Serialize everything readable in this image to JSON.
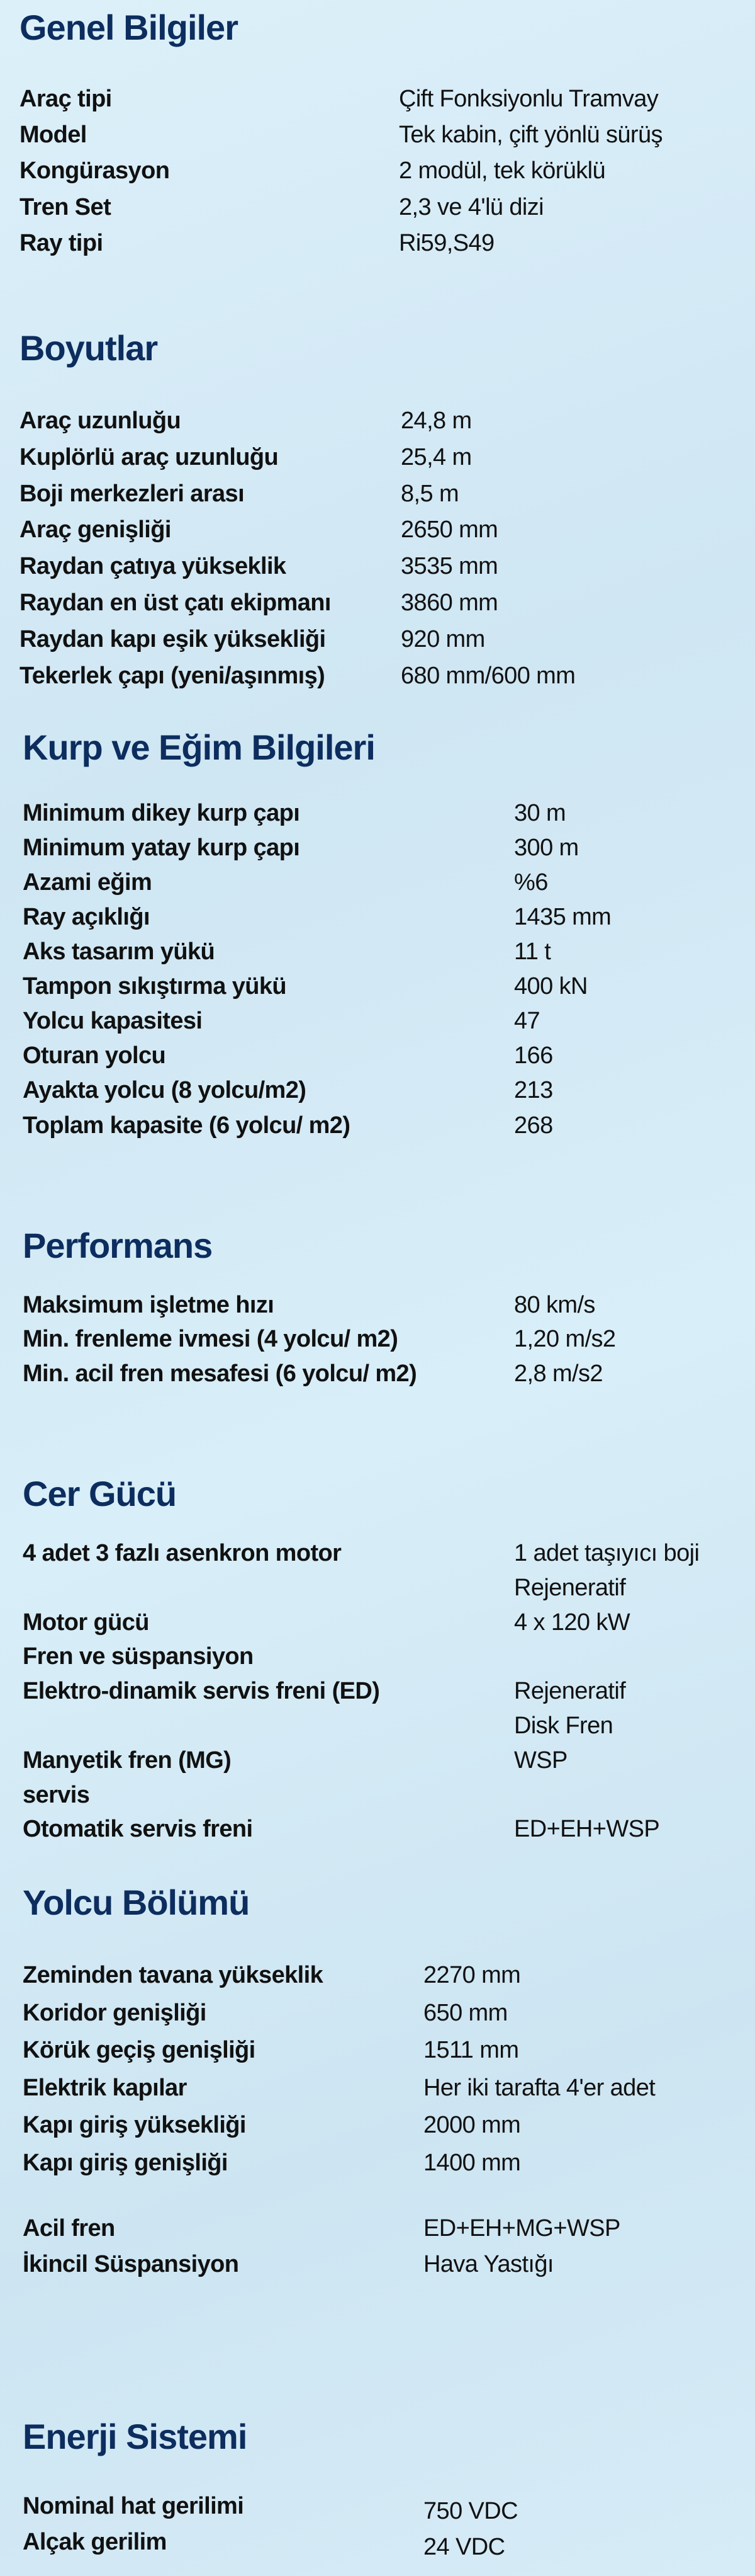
{
  "colors": {
    "heading": "#0c2d5e",
    "text": "#111111",
    "background": "#d6ecf6"
  },
  "sections": [
    {
      "title": "Genel Bilgiler",
      "rows": [
        {
          "label": "Araç tipi",
          "value": "Çift Fonksiyonlu Tramvay"
        },
        {
          "label": "Model",
          "value": "Tek kabin, çift yönlü sürüş"
        },
        {
          "label": "Kongürasyon",
          "value": "2 modül, tek körüklü"
        },
        {
          "label": "Tren Set",
          "value": "2,3 ve 4'lü dizi"
        },
        {
          "label": "Ray tipi",
          "value": "Ri59,S49"
        }
      ]
    },
    {
      "title": "Boyutlar",
      "rows": [
        {
          "label": "Araç uzunluğu",
          "value": "24,8 m"
        },
        {
          "label": "Kuplörlü araç uzunluğu",
          "value": "25,4 m"
        },
        {
          "label": "Boji merkezleri arası",
          "value": "8,5 m"
        },
        {
          "label": "Araç genişliği",
          "value": "2650 mm"
        },
        {
          "label": "Raydan çatıya yükseklik",
          "value": "3535 mm"
        },
        {
          "label": "Raydan en üst çatı ekipmanı",
          "value": "3860 mm"
        },
        {
          "label": "Raydan kapı eşik yüksekliği",
          "value": "920 mm"
        },
        {
          "label": "Tekerlek çapı (yeni/aşınmış)",
          "value": "680 mm/600 mm"
        }
      ]
    },
    {
      "title": "Kurp ve Eğim Bilgileri",
      "rows": [
        {
          "label": "Minimum dikey kurp çapı",
          "value": "30 m"
        },
        {
          "label": "Minimum yatay kurp çapı",
          "value": "300 m"
        },
        {
          "label": "Azami eğim",
          "value": "%6"
        },
        {
          "label": "Ray açıklığı",
          "value": "1435 mm"
        },
        {
          "label": "Aks tasarım yükü",
          "value": "11 t"
        },
        {
          "label": "Tampon sıkıştırma yükü",
          "value": "400 kN"
        },
        {
          "label": "Yolcu kapasitesi",
          "value": "47"
        },
        {
          "label": "Oturan yolcu",
          "value": "166"
        },
        {
          "label": "Ayakta yolcu (8 yolcu/m2)",
          "value": "213"
        },
        {
          "label": "Toplam kapasite (6 yolcu/ m2)",
          "value": "268"
        }
      ]
    },
    {
      "title": "Performans",
      "rows": [
        {
          "label": "Maksimum işletme hızı",
          "value": "80 km/s"
        },
        {
          "label": "Min. frenleme ivmesi  (4 yolcu/ m2)",
          "value": "1,20 m/s2"
        },
        {
          "label": "Min. acil fren mesafesi (6 yolcu/ m2)",
          "value": "2,8 m/s2"
        }
      ]
    },
    {
      "title": "Cer Gücü",
      "rows": [
        {
          "label": "4 adet 3 fazlı asenkron motor",
          "value": "1 adet taşıyıcı boji"
        },
        {
          "label": "",
          "value": "Rejeneratif"
        },
        {
          "label": "Motor gücü",
          "value": "4 x 120 kW"
        },
        {
          "label": "Fren ve süspansiyon",
          "value": ""
        },
        {
          "label": "Elektro-dinamik servis freni (ED)",
          "value": "Rejeneratif"
        },
        {
          "label": "",
          "value": "Disk Fren"
        },
        {
          "label": "Manyetik fren (MG)",
          "value": "WSP"
        },
        {
          "label": "servis",
          "value": ""
        },
        {
          "label": "Otomatik servis freni",
          "value": "ED+EH+WSP"
        }
      ]
    },
    {
      "title": "Yolcu Bölümü",
      "rows": [
        {
          "label": "Zeminden tavana yükseklik",
          "value": "2270 mm"
        },
        {
          "label": "Koridor genişliği",
          "value": "650 mm"
        },
        {
          "label": "Körük geçiş genişliği",
          "value": "1511 mm"
        },
        {
          "label": "Elektrik kapılar",
          "value": "Her iki tarafta 4'er adet"
        },
        {
          "label": "Kapı giriş yüksekliği",
          "value": "2000 mm"
        },
        {
          "label": "Kapı giriş genişliği",
          "value": "1400 mm"
        },
        {
          "label": "Acil fren",
          "value": "ED+EH+MG+WSP"
        },
        {
          "label": "İkincil Süspansiyon",
          "value": "Hava Yastığı"
        }
      ]
    },
    {
      "title": "Enerji Sistemi",
      "rows": [
        {
          "label": "Nominal hat gerilimi",
          "value": "750 VDC"
        },
        {
          "label": "Alçak gerilim",
          "value": "24 VDC"
        }
      ]
    }
  ]
}
